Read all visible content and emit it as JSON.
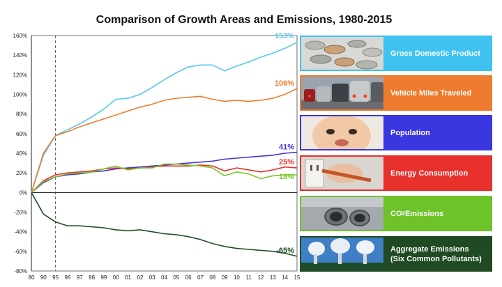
{
  "chart_data": {
    "type": "line",
    "title": "Comparison of Growth Areas and Emissions, 1980-2015",
    "x_ticks": [
      "80",
      "90",
      "95",
      "96",
      "97",
      "98",
      "99",
      "00",
      "01",
      "02",
      "03",
      "04",
      "05",
      "06",
      "07",
      "08",
      "09",
      "10",
      "11",
      "12",
      "13",
      "14",
      "15"
    ],
    "y_ticks": [
      "160%",
      "140%",
      "120%",
      "100%",
      "80%",
      "60%",
      "40%",
      "20%",
      "0%",
      "-20%",
      "-40%",
      "-60%",
      "-80%"
    ],
    "ylim": [
      -80,
      160
    ],
    "reference_line_at_tick": "95",
    "grid": false,
    "legend_position": "right",
    "series": [
      {
        "name": "Gross Domestic Product",
        "color": "#55c8ee",
        "end_label": "153%",
        "values": [
          0,
          38,
          58,
          64,
          70,
          77,
          85,
          95,
          96,
          100,
          107,
          115,
          122,
          128,
          130,
          130,
          124,
          129,
          133,
          138,
          142,
          147,
          153
        ]
      },
      {
        "name": "Vehicle Miles Traveled",
        "color": "#ee7b2e",
        "end_label": "106%",
        "values": [
          0,
          40,
          58,
          62,
          67,
          71,
          75,
          79,
          83,
          87,
          90,
          94,
          96,
          97,
          98,
          95,
          93,
          94,
          93,
          94,
          96,
          100,
          106
        ]
      },
      {
        "name": "Population",
        "color": "#4a33d6",
        "end_label": "41%",
        "values": [
          0,
          10,
          16,
          18,
          19,
          21,
          22,
          24,
          25,
          26,
          27,
          28,
          29,
          30,
          31,
          32,
          34,
          35,
          36,
          37,
          38,
          40,
          41
        ]
      },
      {
        "name": "Energy Consumption",
        "color": "#e8302c",
        "end_label": "25%",
        "values": [
          0,
          12,
          18,
          20,
          21,
          22,
          24,
          25,
          24,
          25,
          26,
          27,
          27,
          27,
          28,
          27,
          22,
          25,
          23,
          21,
          23,
          26,
          25
        ]
      },
      {
        "name": "CO2 Emissions",
        "label_prefix": "CO",
        "label_sub": "2",
        "label_suffix": " Emissions",
        "color": "#78c828",
        "end_label": "18%",
        "values": [
          0,
          11,
          16,
          19,
          20,
          21,
          24,
          27,
          23,
          25,
          25,
          29,
          29,
          28,
          27,
          25,
          17,
          21,
          19,
          14,
          17,
          18,
          18
        ]
      },
      {
        "name": "Aggregate Emissions (Six Common Pollutants)",
        "label_line1": "Aggregate Emissions",
        "label_line2": "(Six Common Pollutants)",
        "color": "#1f4f24",
        "end_label": "-65%",
        "values": [
          0,
          -22,
          -30,
          -34,
          -34,
          -35,
          -36,
          -38,
          -39,
          -38,
          -40,
          -42,
          -43,
          -45,
          -48,
          -52,
          -55,
          -57,
          -58,
          -59,
          -60,
          -62,
          -65
        ]
      }
    ]
  },
  "legend_colors": [
    "#3fc2f0",
    "#ee7b2e",
    "#3a36e0",
    "#e8302c",
    "#6ec32a",
    "#1f4a24"
  ]
}
